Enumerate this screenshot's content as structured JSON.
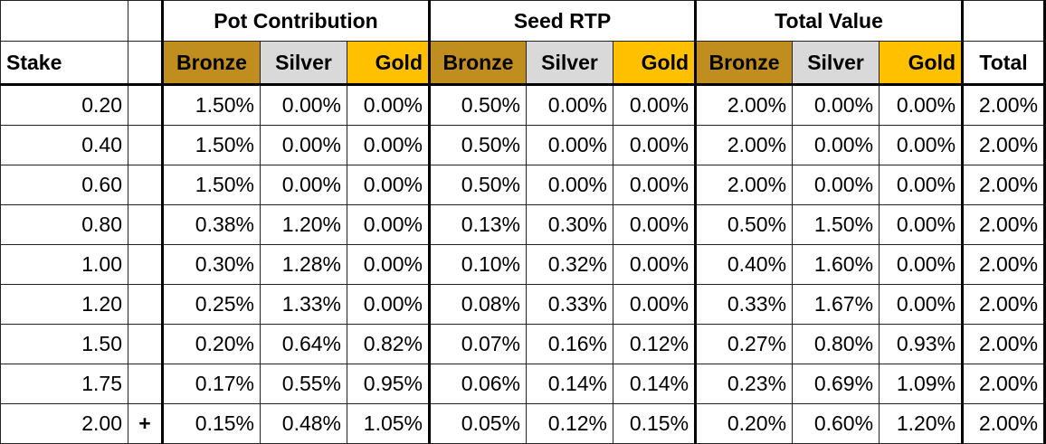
{
  "colors": {
    "bronze": "#C08E1F",
    "silver": "#D9D9D9",
    "gold": "#FFC000"
  },
  "group_headers": [
    "Pot Contribution",
    "Seed RTP",
    "Total Value"
  ],
  "columns": {
    "stake": "Stake",
    "tiers": [
      "Bronze",
      "Silver",
      "Gold"
    ],
    "total": "Total"
  },
  "rows": [
    {
      "stake": "0.20",
      "marker": "",
      "pot": [
        "1.50%",
        "0.00%",
        "0.00%"
      ],
      "seed": [
        "0.50%",
        "0.00%",
        "0.00%"
      ],
      "value": [
        "2.00%",
        "0.00%",
        "0.00%"
      ],
      "total": "2.00%"
    },
    {
      "stake": "0.40",
      "marker": "",
      "pot": [
        "1.50%",
        "0.00%",
        "0.00%"
      ],
      "seed": [
        "0.50%",
        "0.00%",
        "0.00%"
      ],
      "value": [
        "2.00%",
        "0.00%",
        "0.00%"
      ],
      "total": "2.00%"
    },
    {
      "stake": "0.60",
      "marker": "",
      "pot": [
        "1.50%",
        "0.00%",
        "0.00%"
      ],
      "seed": [
        "0.50%",
        "0.00%",
        "0.00%"
      ],
      "value": [
        "2.00%",
        "0.00%",
        "0.00%"
      ],
      "total": "2.00%"
    },
    {
      "stake": "0.80",
      "marker": "",
      "pot": [
        "0.38%",
        "1.20%",
        "0.00%"
      ],
      "seed": [
        "0.13%",
        "0.30%",
        "0.00%"
      ],
      "value": [
        "0.50%",
        "1.50%",
        "0.00%"
      ],
      "total": "2.00%"
    },
    {
      "stake": "1.00",
      "marker": "",
      "pot": [
        "0.30%",
        "1.28%",
        "0.00%"
      ],
      "seed": [
        "0.10%",
        "0.32%",
        "0.00%"
      ],
      "value": [
        "0.40%",
        "1.60%",
        "0.00%"
      ],
      "total": "2.00%"
    },
    {
      "stake": "1.20",
      "marker": "",
      "pot": [
        "0.25%",
        "1.33%",
        "0.00%"
      ],
      "seed": [
        "0.08%",
        "0.33%",
        "0.00%"
      ],
      "value": [
        "0.33%",
        "1.67%",
        "0.00%"
      ],
      "total": "2.00%"
    },
    {
      "stake": "1.50",
      "marker": "",
      "pot": [
        "0.20%",
        "0.64%",
        "0.82%"
      ],
      "seed": [
        "0.07%",
        "0.16%",
        "0.12%"
      ],
      "value": [
        "0.27%",
        "0.80%",
        "0.93%"
      ],
      "total": "2.00%"
    },
    {
      "stake": "1.75",
      "marker": "",
      "pot": [
        "0.17%",
        "0.55%",
        "0.95%"
      ],
      "seed": [
        "0.06%",
        "0.14%",
        "0.14%"
      ],
      "value": [
        "0.23%",
        "0.69%",
        "1.09%"
      ],
      "total": "2.00%"
    },
    {
      "stake": "2.00",
      "marker": "+",
      "pot": [
        "0.15%",
        "0.48%",
        "1.05%"
      ],
      "seed": [
        "0.05%",
        "0.12%",
        "0.15%"
      ],
      "value": [
        "0.20%",
        "0.60%",
        "1.20%"
      ],
      "total": "2.00%"
    }
  ]
}
